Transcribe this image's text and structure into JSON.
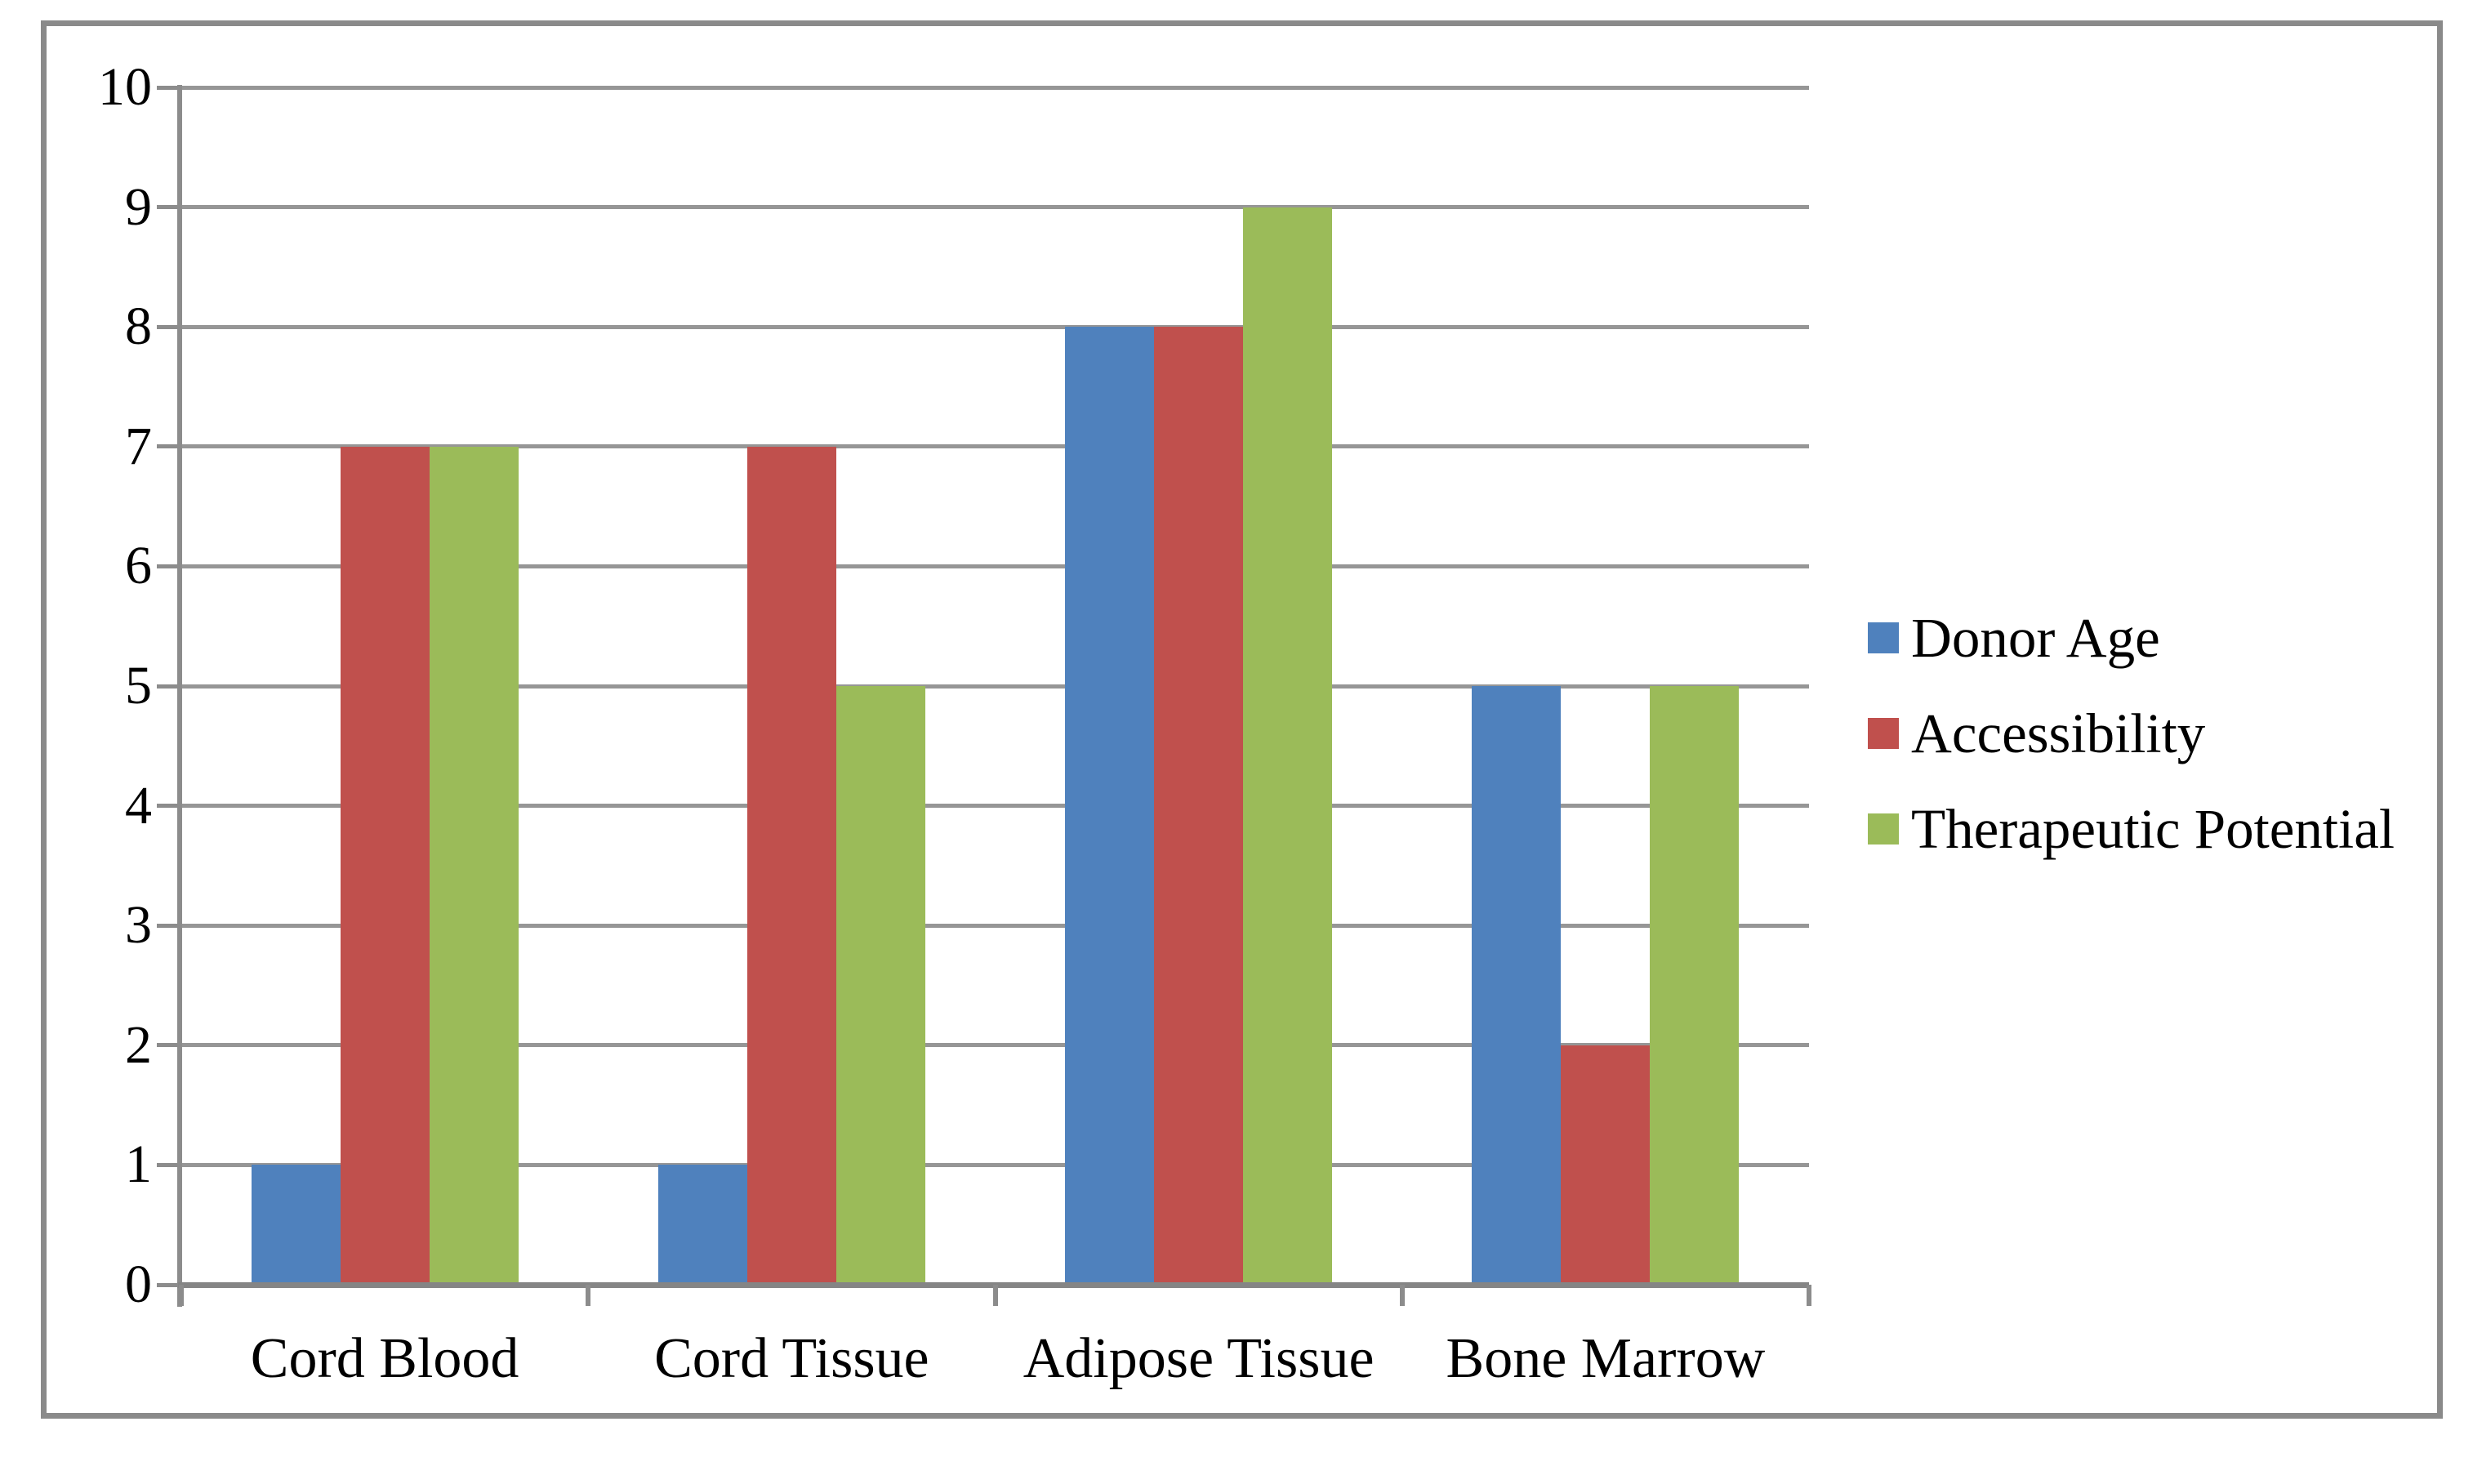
{
  "chart_data": {
    "type": "bar",
    "categories": [
      "Cord Blood",
      "Cord Tissue",
      "Adipose Tissue",
      "Bone Marrow"
    ],
    "series": [
      {
        "name": "Donor Age",
        "color": "#4F81BD",
        "values": [
          1,
          1,
          8,
          5
        ]
      },
      {
        "name": "Accessibility",
        "color": "#C0504D",
        "values": [
          7,
          7,
          8,
          2
        ]
      },
      {
        "name": "Therapeutic Potential",
        "color": "#9BBB59",
        "values": [
          7,
          5,
          9,
          5
        ]
      }
    ],
    "ylim": [
      0,
      10
    ],
    "ytick_step": 1,
    "y_tick_labels": [
      "0",
      "1",
      "2",
      "3",
      "4",
      "5",
      "6",
      "7",
      "8",
      "9",
      "10"
    ],
    "grid": true,
    "legend_position": "right",
    "styles": {
      "gridline_color": "#969696",
      "axis_color": "#8C8C8C",
      "baseline_color": "#858585",
      "frame_border_color": "#8A8A8A",
      "background_color": "#FFFFFF",
      "text_color": "#000000"
    }
  }
}
